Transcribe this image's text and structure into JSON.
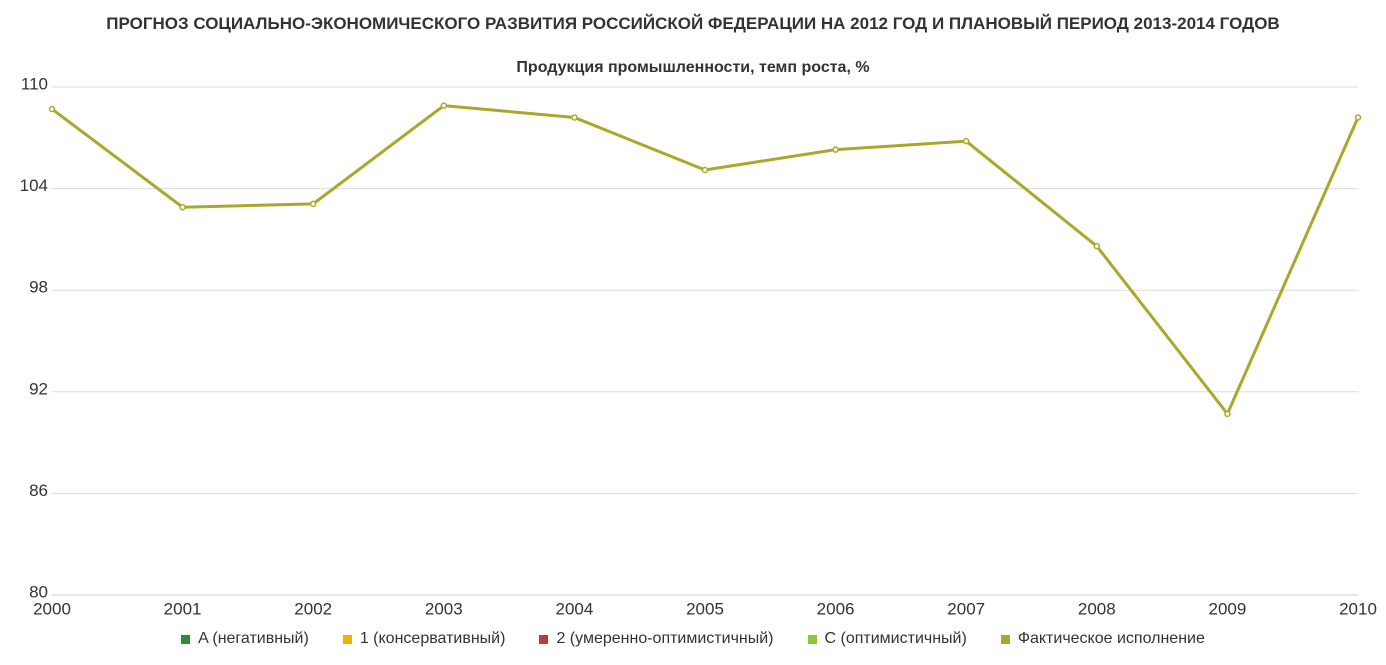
{
  "chart_data": {
    "type": "line",
    "title": "ПРОГНОЗ СОЦИАЛЬНО-ЭКОНОМИЧЕСКОГО РАЗВИТИЯ РОССИЙСКОЙ ФЕДЕРАЦИИ НА 2012 ГОД И ПЛАНОВЫЙ ПЕРИОД 2013-2014 ГОДОВ",
    "subtitle": "Продукция промышленности, темп роста, %",
    "categories": [
      "2000",
      "2001",
      "2002",
      "2003",
      "2004",
      "2005",
      "2006",
      "2007",
      "2008",
      "2009",
      "2010"
    ],
    "series": [
      {
        "name": "A (негативный)",
        "color": "#2e8b3e",
        "values": [
          null,
          null,
          null,
          null,
          null,
          null,
          null,
          null,
          null,
          null,
          null
        ]
      },
      {
        "name": "1 (консервативный)",
        "color": "#f0b400",
        "values": [
          null,
          null,
          null,
          null,
          null,
          null,
          null,
          null,
          null,
          null,
          null
        ]
      },
      {
        "name": "2 (умеренно-оптимистичный)",
        "color": "#c0393b",
        "values": [
          null,
          null,
          null,
          null,
          null,
          null,
          null,
          null,
          null,
          null,
          null
        ]
      },
      {
        "name": "C (оптимистичный)",
        "color": "#8cc63f",
        "values": [
          null,
          null,
          null,
          null,
          null,
          null,
          null,
          null,
          null,
          null,
          null
        ]
      },
      {
        "name": "Фактическое исполнение",
        "color": "#aaa82a",
        "values": [
          108.7,
          102.9,
          103.1,
          108.9,
          108.2,
          105.1,
          106.3,
          106.8,
          100.6,
          90.7,
          108.2
        ]
      }
    ],
    "ylim": [
      80,
      110
    ],
    "yticks": [
      80,
      86,
      92,
      98,
      104,
      110
    ],
    "grid": true,
    "legend": "bottom"
  }
}
